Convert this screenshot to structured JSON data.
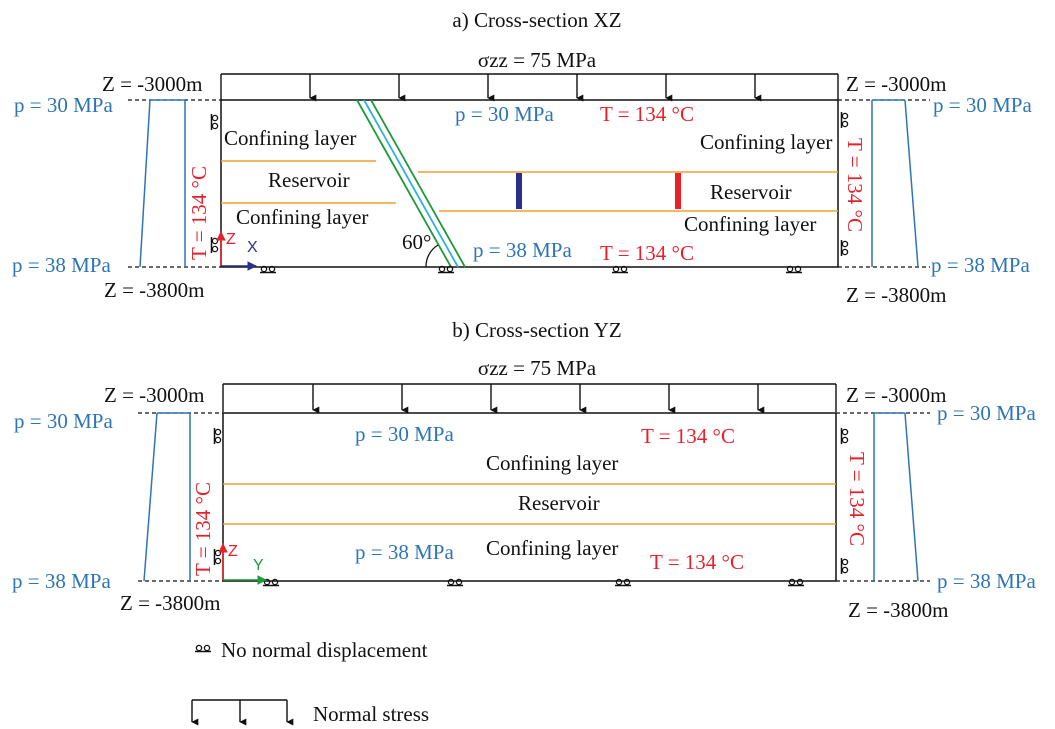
{
  "colors": {
    "black": "#111111",
    "blue": "#2e75b6",
    "red": "#e8202a",
    "orange": "#f0a030",
    "green": "#1f9a3a",
    "cyan": "#30b0e0",
    "navy": "#2b2f8c"
  },
  "panel_a": {
    "title": "a) Cross-section XZ",
    "stress": "σzz = 75 MPa",
    "z_top_left": "Z = -3000m",
    "z_top_right": "Z = -3000m",
    "z_bot_left": "Z = -3800m",
    "z_bot_right": "Z = -3800m",
    "p_top_left": "p = 30 MPa",
    "p_top_right": "p = 30 MPa",
    "p_bot_left": "p = 38 MPa",
    "p_bot_right": "p = 38 MPa",
    "t_left": "T = 134 °C",
    "t_right": "T = 134 °C",
    "p_top_inner": "p = 30 MPa",
    "t_top_inner": "T = 134 °C",
    "p_bot_inner": "p = 38 MPa",
    "t_bot_inner": "T = 134 °C",
    "confining_tl": "Confining layer",
    "reservoir_l": "Reservoir",
    "confining_bl": "Confining layer",
    "confining_tr": "Confining layer",
    "reservoir_r": "Reservoir",
    "confining_br": "Confining layer",
    "angle": "60°",
    "axis_z": "Z",
    "axis_h": "X"
  },
  "panel_b": {
    "title": "b) Cross-section YZ",
    "stress": "σzz = 75 MPa",
    "z_top_left": "Z = -3000m",
    "z_top_right": "Z = -3000m",
    "z_bot_left": "Z = -3800m",
    "z_bot_right": "Z = -3800m",
    "p_top_left": "p = 30 MPa",
    "p_top_right": "p = 30 MPa",
    "p_bot_left": "p = 38 MPa",
    "p_bot_right": "p = 38 MPa",
    "t_left": "T = 134 °C",
    "t_right": "T = 134 °C",
    "p_top_inner": "p = 30 MPa",
    "t_top_inner": "T = 134 °C",
    "p_bot_inner": "p = 38 MPa",
    "t_bot_inner": "T = 134 °C",
    "confining_top": "Confining layer",
    "reservoir": "Reservoir",
    "confining_bot": "Confining layer",
    "axis_z": "Z",
    "axis_h": "Y"
  },
  "legend": {
    "roller": "No normal displacement",
    "stress": "Normal stress"
  }
}
